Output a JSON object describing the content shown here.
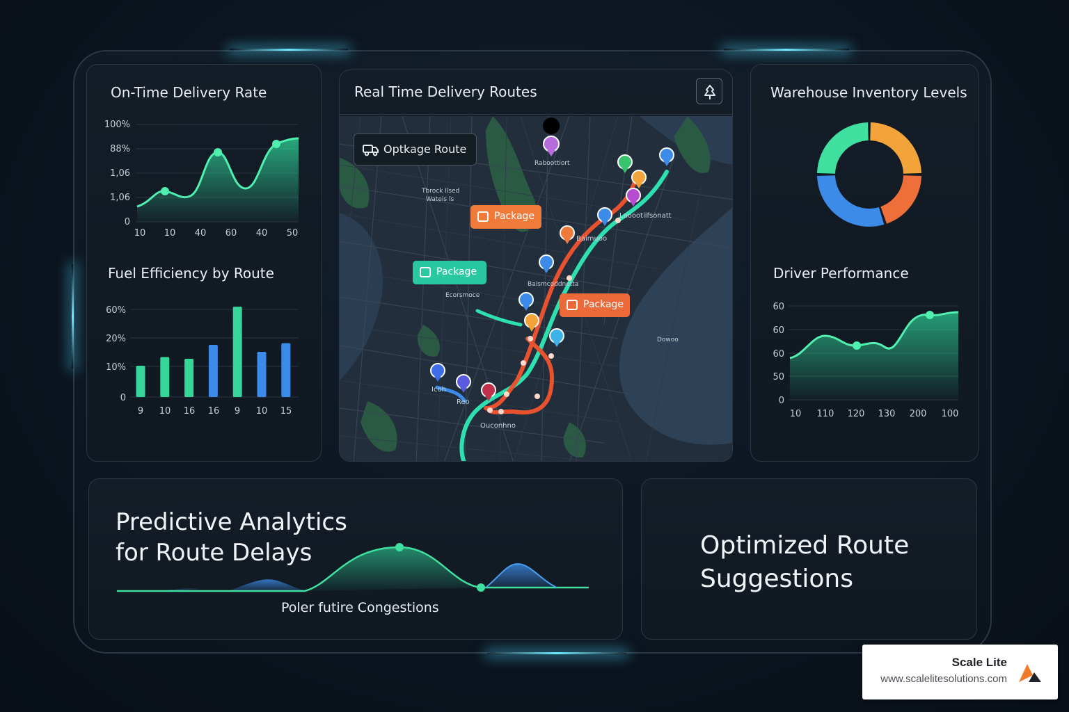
{
  "colors": {
    "background": "#0c1520",
    "panel": "#121a24",
    "accent_green": "#3fe0a0",
    "accent_blue": "#3d8be8",
    "accent_orange": "#f07a3a",
    "route_red": "#e8522f",
    "route_teal": "#2ee0b0"
  },
  "on_time": {
    "title": "On-Time Delivery Rate",
    "y_ticks": [
      "100%",
      "88%",
      "1,06",
      "1,06",
      "0"
    ],
    "x_ticks": [
      "10",
      "10",
      "40",
      "60",
      "40",
      "50"
    ]
  },
  "fuel": {
    "title": "Fuel Efficiency by Route",
    "y_ticks": [
      "60%",
      "20%",
      "10%",
      "0"
    ],
    "x_ticks": [
      "9",
      "10",
      "16",
      "16",
      "9",
      "10",
      "15"
    ],
    "bar_values": [
      18,
      23,
      22,
      30,
      52,
      26,
      31
    ],
    "bar_colors": [
      "#36d69a",
      "#36d69a",
      "#36d69a",
      "#3d8be8",
      "#36d69a",
      "#3d8be8",
      "#3d8be8"
    ],
    "y_max": 60
  },
  "map": {
    "title": "Real Time Delivery Routes",
    "pin_icon": "pin-icon",
    "route_button": "Optkage Route",
    "route_button_icon": "truck-icon",
    "packages": [
      "Package",
      "Package",
      "Package"
    ],
    "labels": [
      "Raboottiort",
      "Tbrock  Ilsed",
      "Wateis ls",
      "Laoootiifsonatt",
      "Baimuoo",
      "Ecorsmoce",
      "Baismcoddnetta",
      "Icoh",
      "Reo",
      "Ouconhno",
      "Dowoo"
    ]
  },
  "inventory": {
    "title": "Warehouse Inventory Levels",
    "segments": [
      {
        "value": 25,
        "color": "#f2a33a"
      },
      {
        "value": 20,
        "color": "#ee6f3a"
      },
      {
        "value": 30,
        "color": "#3d8be8"
      },
      {
        "value": 25,
        "color": "#3fe0a0"
      }
    ]
  },
  "driver": {
    "title": "Driver Performance",
    "y_ticks": [
      "60",
      "60",
      "60",
      "50",
      "0"
    ],
    "x_ticks": [
      "10",
      "110",
      "120",
      "130",
      "200",
      "100"
    ]
  },
  "predictive": {
    "title_line1": "Predictive Analytics",
    "title_line2": "for Route Delays",
    "caption": "Poler futire Congestions"
  },
  "suggestions": {
    "title_line1": "Optimized Route",
    "title_line2": "Suggestions"
  },
  "brand": {
    "name": "Scale Lite",
    "url": "www.scalelitesolutions.com",
    "logo_icon": "scale-lite-logo-icon"
  }
}
